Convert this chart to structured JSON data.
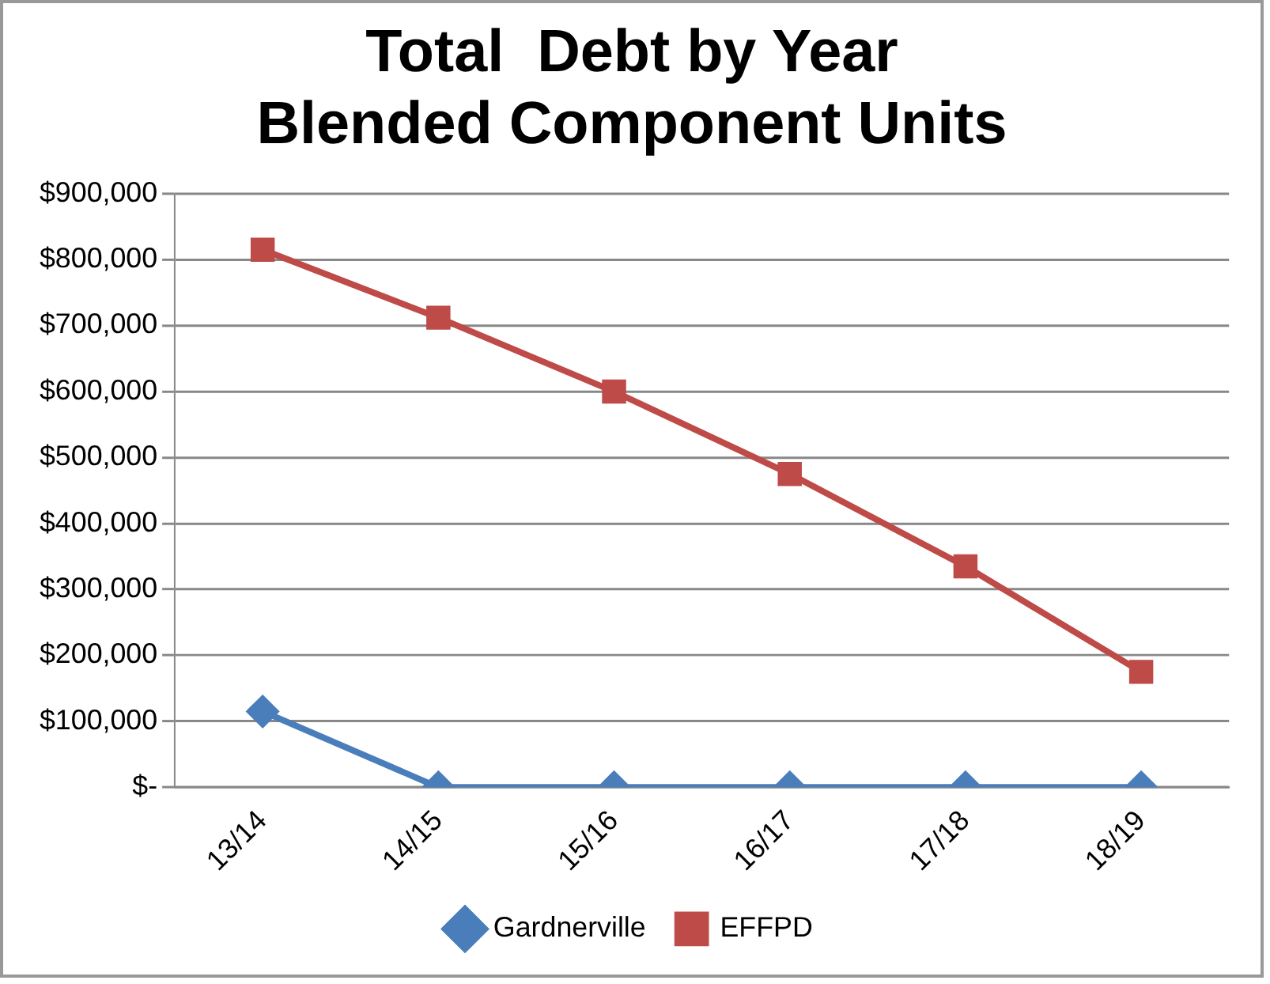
{
  "chart_data": {
    "type": "line",
    "title": "Total  Debt by Year\nBlended Component Units",
    "categories": [
      "13/14",
      "14/15",
      "15/16",
      "16/17",
      "17/18",
      "18/19"
    ],
    "series": [
      {
        "name": "Gardnerville",
        "color": "#4a7ebb",
        "marker": "diamond",
        "values": [
          115000,
          0,
          0,
          0,
          0,
          0
        ]
      },
      {
        "name": "EFFPD",
        "color": "#be4b48",
        "marker": "square",
        "values": [
          815000,
          712000,
          600000,
          475000,
          335000,
          175000
        ]
      }
    ],
    "ylim": [
      0,
      900000
    ],
    "yticks": [
      {
        "value": 0,
        "label": "$-"
      },
      {
        "value": 100000,
        "label": "$100,000"
      },
      {
        "value": 200000,
        "label": "$200,000"
      },
      {
        "value": 300000,
        "label": "$300,000"
      },
      {
        "value": 400000,
        "label": "$400,000"
      },
      {
        "value": 500000,
        "label": "$500,000"
      },
      {
        "value": 600000,
        "label": "$600,000"
      },
      {
        "value": 700000,
        "label": "$700,000"
      },
      {
        "value": 800000,
        "label": "$800,000"
      },
      {
        "value": 900000,
        "label": "$900,000"
      }
    ],
    "grid": "y",
    "legend": "bottom",
    "line_style": "solid"
  }
}
